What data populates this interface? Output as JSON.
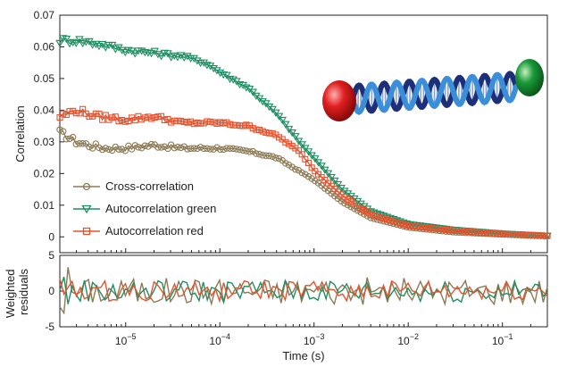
{
  "chart_data": [
    {
      "type": "scatter",
      "panel": "main",
      "xscale": "log",
      "xlim": [
        2e-06,
        0.3
      ],
      "ylim": [
        -0.005,
        0.07
      ],
      "ylabel": "Correlation",
      "xlabel": "",
      "yticks": [
        "0",
        "0.01",
        "0.02",
        "0.03",
        "0.04",
        "0.05",
        "0.06",
        "0.07"
      ],
      "series": [
        {
          "name": "Cross-correlation",
          "color": "#8c7a55",
          "marker": "circle",
          "key_points": [
            [
              2e-06,
              0.033
            ],
            [
              3e-06,
              0.03
            ],
            [
              4e-06,
              0.029
            ],
            [
              6e-06,
              0.028
            ],
            [
              1e-05,
              0.028
            ],
            [
              2e-05,
              0.029
            ],
            [
              4e-05,
              0.028
            ],
            [
              0.0001,
              0.028
            ],
            [
              0.0002,
              0.027
            ],
            [
              0.0004,
              0.025
            ],
            [
              0.001,
              0.018
            ],
            [
              0.002,
              0.011
            ],
            [
              0.004,
              0.006
            ],
            [
              0.01,
              0.003
            ],
            [
              0.03,
              0.0015
            ],
            [
              0.1,
              0.0008
            ],
            [
              0.3,
              0.0003
            ]
          ]
        },
        {
          "name": "Autocorrelation green",
          "color": "#1e8f62",
          "marker": "triangle-down",
          "key_points": [
            [
              2e-06,
              0.062
            ],
            [
              3e-06,
              0.062
            ],
            [
              5e-06,
              0.061
            ],
            [
              1e-05,
              0.059
            ],
            [
              2e-05,
              0.058
            ],
            [
              4e-05,
              0.057
            ],
            [
              7e-05,
              0.055
            ],
            [
              0.0001,
              0.052
            ],
            [
              0.0002,
              0.047
            ],
            [
              0.0004,
              0.039
            ],
            [
              0.0007,
              0.03
            ],
            [
              0.001,
              0.025
            ],
            [
              0.002,
              0.015
            ],
            [
              0.004,
              0.008
            ],
            [
              0.01,
              0.004
            ],
            [
              0.03,
              0.0022
            ],
            [
              0.1,
              0.001
            ],
            [
              0.3,
              0.0003
            ]
          ]
        },
        {
          "name": "Autocorrelation red",
          "color": "#e5532e",
          "marker": "square",
          "key_points": [
            [
              2e-06,
              0.038
            ],
            [
              3e-06,
              0.04
            ],
            [
              5e-06,
              0.038
            ],
            [
              1e-05,
              0.037
            ],
            [
              2e-05,
              0.038
            ],
            [
              4e-05,
              0.036
            ],
            [
              0.0001,
              0.036
            ],
            [
              0.0002,
              0.035
            ],
            [
              0.0004,
              0.032
            ],
            [
              0.0007,
              0.027
            ],
            [
              0.001,
              0.021
            ],
            [
              0.002,
              0.013
            ],
            [
              0.004,
              0.007
            ],
            [
              0.01,
              0.0035
            ],
            [
              0.03,
              0.002
            ],
            [
              0.1,
              0.0009
            ],
            [
              0.3,
              0.0003
            ]
          ]
        }
      ]
    },
    {
      "type": "line",
      "panel": "residuals",
      "xscale": "log",
      "xlim": [
        2e-06,
        0.3
      ],
      "ylim": [
        -5,
        5
      ],
      "xlabel": "Time (s)",
      "ylabel": "Weighted residuals",
      "yticks": [
        "5",
        "0",
        "-5"
      ],
      "xticks": [
        {
          "value": 1e-05,
          "base": "10",
          "exp": "−5"
        },
        {
          "value": 0.0001,
          "base": "10",
          "exp": "−4"
        },
        {
          "value": 0.001,
          "base": "10",
          "exp": "−3"
        },
        {
          "value": 0.01,
          "base": "10",
          "exp": "−2"
        },
        {
          "value": 0.1,
          "base": "10",
          "exp": "−1"
        }
      ],
      "series": [
        {
          "name": "Cross-correlation",
          "color": "#8c7a55",
          "amplitude": 1.2
        },
        {
          "name": "Autocorrelation green",
          "color": "#1e8f62",
          "amplitude": 1.0
        },
        {
          "name": "Autocorrelation red",
          "color": "#e5532e",
          "amplitude": 0.9
        }
      ]
    }
  ],
  "legend": {
    "position": "lower-left",
    "items": [
      {
        "label": "Cross-correlation",
        "color": "#8c7a55",
        "marker": "circle"
      },
      {
        "label": "Autocorrelation green",
        "color": "#1e8f62",
        "marker": "triangle-down"
      },
      {
        "label": "Autocorrelation red",
        "color": "#e5532e",
        "marker": "square"
      }
    ]
  },
  "illustration": {
    "name": "dna-helix-with-two-dyes",
    "dye_left_color": "#e02020",
    "dye_right_color": "#1a9a3a",
    "helix_color_1": "#3a8fd8",
    "helix_color_2": "#1e2f7a"
  }
}
